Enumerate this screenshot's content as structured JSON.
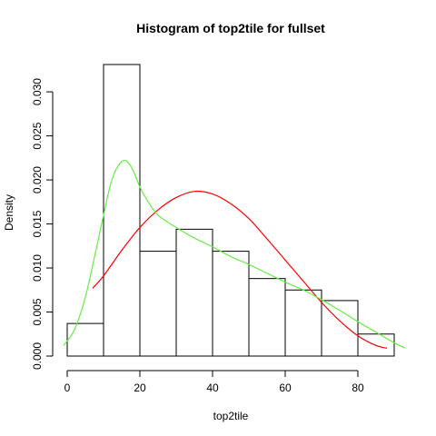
{
  "chart_data": {
    "type": "bar",
    "title": "Histogram of top2tile for fullset",
    "xlabel": "top2tile",
    "ylabel": "Density",
    "xlim": [
      0,
      90
    ],
    "ylim": [
      0,
      0.033
    ],
    "grid": false,
    "bins": [
      {
        "x0": 0,
        "x1": 10,
        "density": 0.0037
      },
      {
        "x0": 10,
        "x1": 20,
        "density": 0.0331
      },
      {
        "x0": 20,
        "x1": 30,
        "density": 0.0119
      },
      {
        "x0": 30,
        "x1": 40,
        "density": 0.0144
      },
      {
        "x0": 40,
        "x1": 50,
        "density": 0.0119
      },
      {
        "x0": 50,
        "x1": 60,
        "density": 0.0088
      },
      {
        "x0": 60,
        "x1": 70,
        "density": 0.0075
      },
      {
        "x0": 70,
        "x1": 80,
        "density": 0.0063
      },
      {
        "x0": 80,
        "x1": 90,
        "density": 0.0025
      }
    ],
    "x_ticks": [
      {
        "value": 0,
        "label": "0"
      },
      {
        "value": 20,
        "label": "20"
      },
      {
        "value": 40,
        "label": "40"
      },
      {
        "value": 60,
        "label": "60"
      },
      {
        "value": 80,
        "label": "80"
      }
    ],
    "y_ticks": [
      {
        "value": 0,
        "label": "0.000"
      },
      {
        "value": 0.005,
        "label": "0.005"
      },
      {
        "value": 0.01,
        "label": "0.010"
      },
      {
        "value": 0.015,
        "label": "0.015"
      },
      {
        "value": 0.02,
        "label": "0.020"
      },
      {
        "value": 0.025,
        "label": "0.025"
      },
      {
        "value": 0.03,
        "label": "0.030"
      }
    ],
    "series": [
      {
        "color": "#ff0000",
        "x": [
          7,
          10,
          15,
          20,
          25,
          30,
          35,
          40,
          45,
          50,
          55,
          60,
          65,
          70,
          75,
          80,
          85,
          88
        ],
        "y": [
          0.0077,
          0.0091,
          0.012,
          0.0146,
          0.0166,
          0.018,
          0.0187,
          0.0184,
          0.0173,
          0.0156,
          0.0133,
          0.0109,
          0.0085,
          0.0061,
          0.004,
          0.0023,
          0.0012,
          0.0009
        ]
      },
      {
        "color": "#66ee44",
        "x": [
          -1,
          2,
          5,
          8,
          10,
          12,
          14,
          16,
          18,
          20,
          22,
          25,
          30,
          35,
          40,
          45,
          50,
          55,
          60,
          65,
          70,
          75,
          80,
          85,
          90,
          93
        ],
        "y": [
          0.0012,
          0.003,
          0.0067,
          0.0122,
          0.016,
          0.0196,
          0.0216,
          0.0222,
          0.0212,
          0.0192,
          0.0177,
          0.016,
          0.0146,
          0.0134,
          0.0124,
          0.0113,
          0.0104,
          0.0094,
          0.0084,
          0.0075,
          0.0064,
          0.0052,
          0.0039,
          0.0027,
          0.0015,
          0.0009
        ]
      }
    ]
  }
}
